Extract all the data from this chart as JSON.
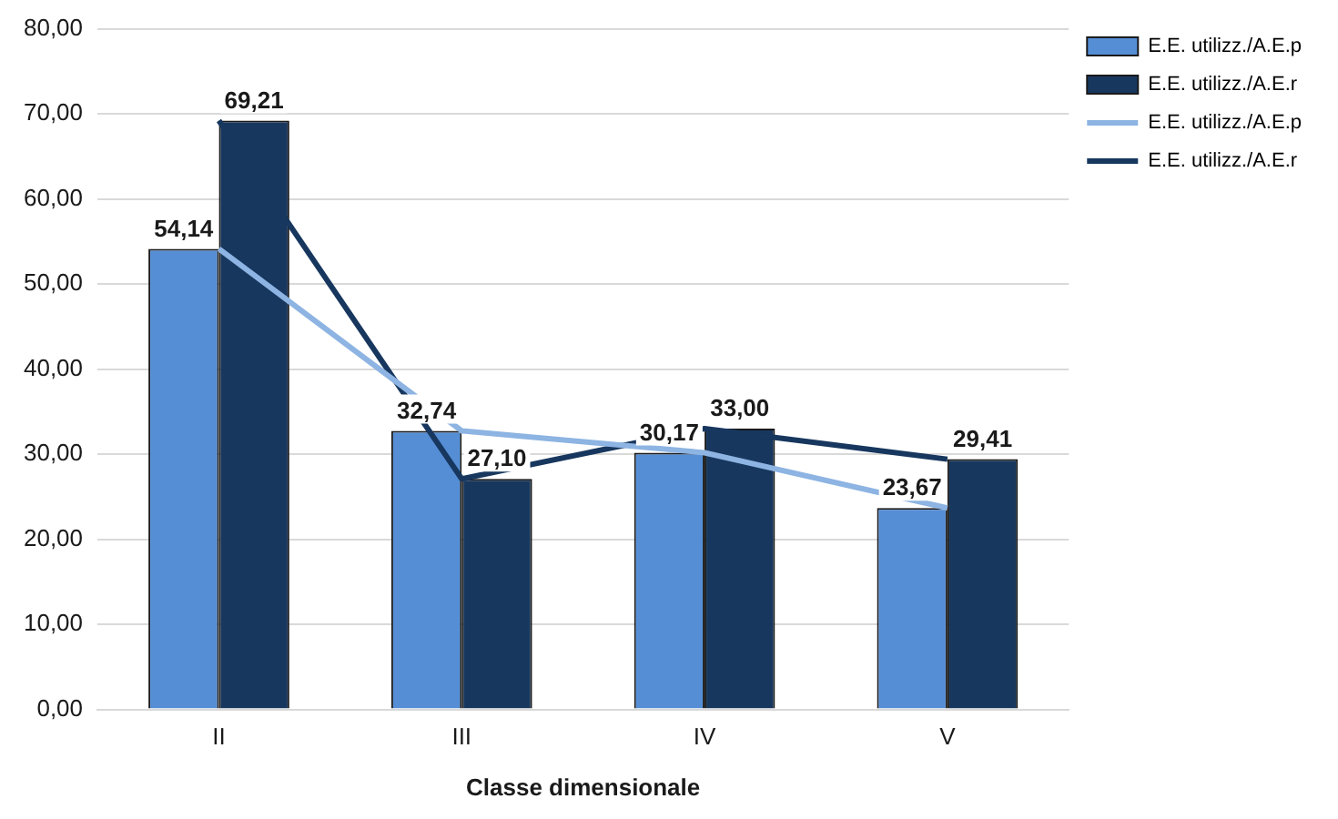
{
  "chart_data": {
    "type": "bar",
    "xlabel": "Classe dimensionale",
    "categories": [
      "II",
      "III",
      "IV",
      "V"
    ],
    "series": [
      {
        "name": "E.E. utilizz./A.E.p",
        "color": "#558ed5",
        "values": [
          54.14,
          32.74,
          30.17,
          23.67
        ],
        "value_labels": [
          "54,14",
          "32,74",
          "30,17",
          "23,67"
        ]
      },
      {
        "name": "E.E. utilizz./A.E.r",
        "color": "#17375e",
        "values": [
          69.21,
          27.1,
          33.0,
          29.41
        ],
        "value_labels": [
          "69,21",
          "27,10",
          "33,00",
          "29,41"
        ]
      },
      {
        "name": "E.E. utilizz./A.E.p",
        "type": "line",
        "color": "#8db4e2",
        "values": [
          54.14,
          32.74,
          30.17,
          23.67
        ]
      },
      {
        "name": "E.E. utilizz./A.E.r",
        "type": "line",
        "color": "#17375e",
        "values": [
          69.21,
          27.1,
          33.0,
          29.41
        ]
      }
    ],
    "ylim": [
      0,
      80
    ],
    "yticks": [
      {
        "value": 0,
        "label": "0,00"
      },
      {
        "value": 10,
        "label": "10,00"
      },
      {
        "value": 20,
        "label": "20,00"
      },
      {
        "value": 30,
        "label": "30,00"
      },
      {
        "value": 40,
        "label": "40,00"
      },
      {
        "value": 50,
        "label": "50,00"
      },
      {
        "value": 60,
        "label": "60,00"
      },
      {
        "value": 70,
        "label": "70,00"
      },
      {
        "value": 80,
        "label": "80,00"
      }
    ],
    "grid": "y",
    "legend": "right",
    "marker": "none"
  }
}
